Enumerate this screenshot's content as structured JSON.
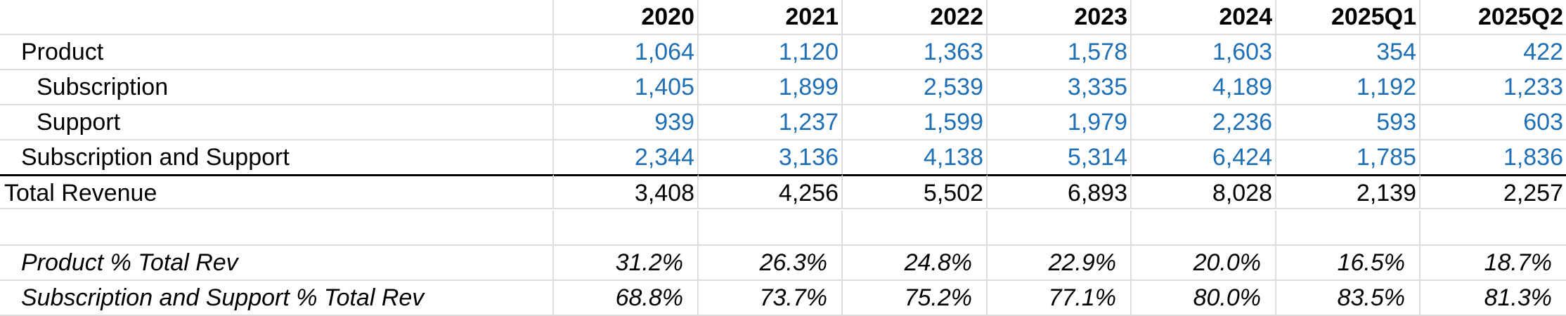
{
  "headers": [
    "2020",
    "2021",
    "2022",
    "2023",
    "2024",
    "2025Q1",
    "2025Q2"
  ],
  "rows": [
    {
      "label": "Product",
      "values": [
        "1,064",
        "1,120",
        "1,363",
        "1,578",
        "1,603",
        "354",
        "422"
      ]
    },
    {
      "label": "Subscription",
      "values": [
        "1,405",
        "1,899",
        "2,539",
        "3,335",
        "4,189",
        "1,192",
        "1,233"
      ]
    },
    {
      "label": "Support",
      "values": [
        "939",
        "1,237",
        "1,599",
        "1,979",
        "2,236",
        "593",
        "603"
      ]
    },
    {
      "label": "Subscription and Support",
      "values": [
        "2,344",
        "3,136",
        "4,138",
        "5,314",
        "6,424",
        "1,785",
        "1,836"
      ]
    },
    {
      "label": "Total Revenue",
      "values": [
        "3,408",
        "4,256",
        "5,502",
        "6,893",
        "8,028",
        "2,139",
        "2,257"
      ]
    },
    {
      "label": "Product % Total Rev",
      "values": [
        "31.2%",
        "26.3%",
        "24.8%",
        "22.9%",
        "20.0%",
        "16.5%",
        "18.7%"
      ]
    },
    {
      "label": "Subscription and Support % Total Rev",
      "values": [
        "68.8%",
        "73.7%",
        "75.2%",
        "77.1%",
        "80.0%",
        "83.5%",
        "81.3%"
      ]
    }
  ],
  "colors": {
    "input_blue": "#1f6fb5",
    "gridline": "#dcdcdc"
  }
}
